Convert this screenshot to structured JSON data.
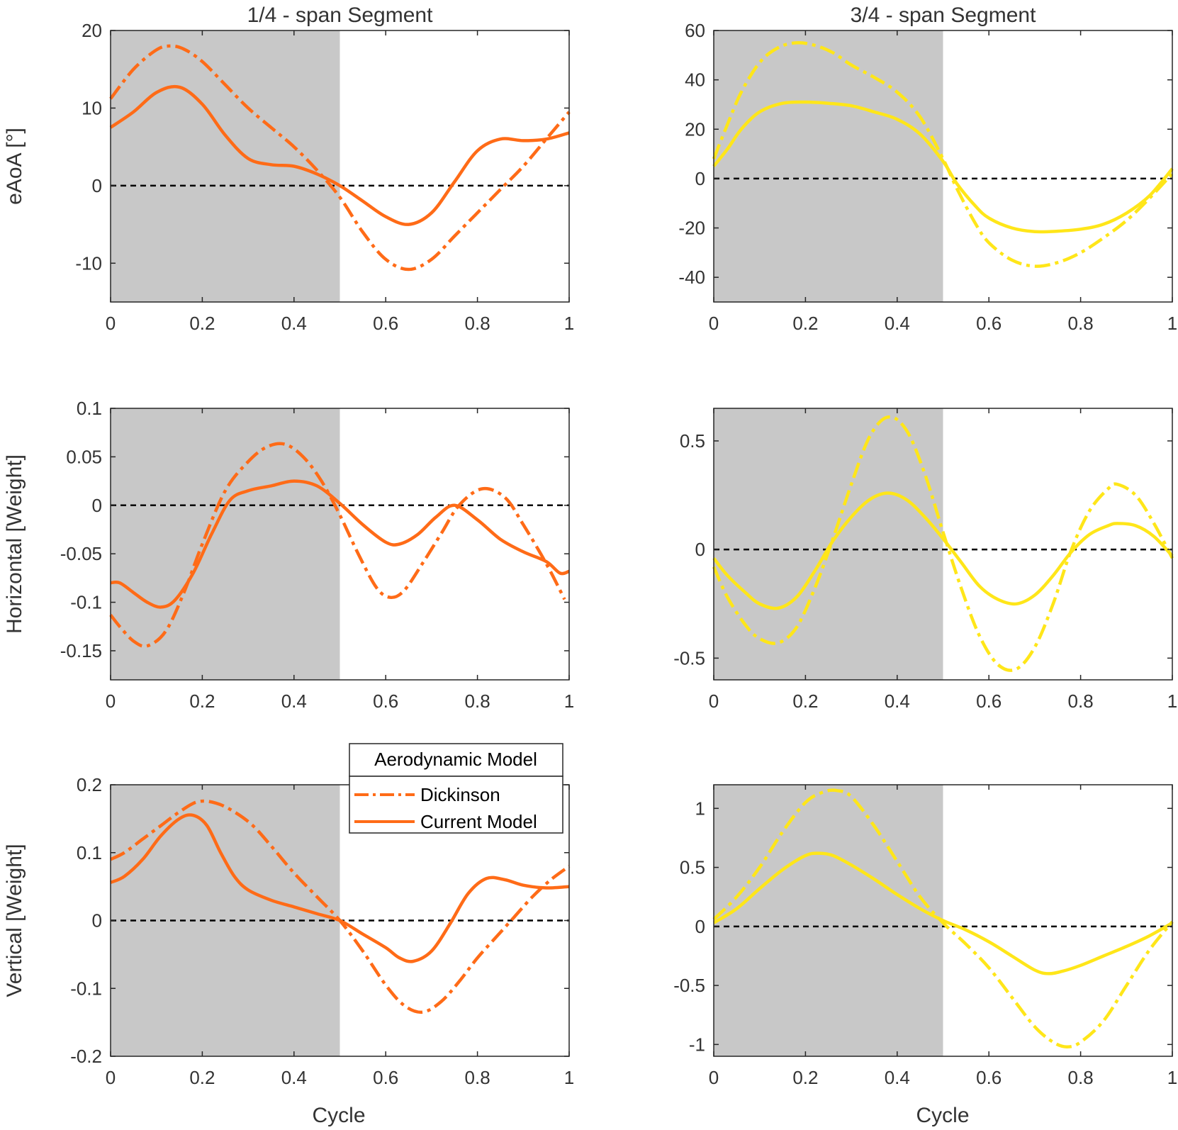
{
  "figure": {
    "x_label": "Cycle"
  },
  "chart_data": [
    {
      "type": "line",
      "panel": "r1c1",
      "title": "1/4 - span Segment",
      "xlabel": "",
      "ylabel": "eAoA [°]",
      "xlim": [
        0,
        1
      ],
      "ylim": [
        -15,
        20
      ],
      "xticks": [
        0,
        0.2,
        0.4,
        0.6,
        0.8,
        1
      ],
      "xtick_labels": [
        "0",
        "0.2",
        "0.4",
        "0.6",
        "0.8",
        "1"
      ],
      "yticks": [
        -10,
        0,
        10,
        20
      ],
      "ytick_labels": [
        "-10",
        "0",
        "10",
        "20"
      ],
      "shaded_region": [
        0,
        0.5
      ],
      "reference_line": 0,
      "color": "#FF6B17",
      "series": [
        {
          "name": "Dickinson",
          "style": "dashdot",
          "x": [
            0,
            0.05,
            0.1,
            0.13,
            0.16,
            0.2,
            0.25,
            0.3,
            0.35,
            0.4,
            0.45,
            0.5,
            0.55,
            0.6,
            0.65,
            0.7,
            0.75,
            0.8,
            0.85,
            0.9,
            0.95,
            1.0
          ],
          "values": [
            11.2,
            15.0,
            17.5,
            18.0,
            17.6,
            16.0,
            13.0,
            10.0,
            7.5,
            5.0,
            2.0,
            -1.5,
            -6.0,
            -9.5,
            -10.8,
            -9.5,
            -6.5,
            -3.5,
            -0.5,
            2.5,
            6.0,
            9.5
          ]
        },
        {
          "name": "Current Model",
          "style": "solid",
          "x": [
            0,
            0.05,
            0.1,
            0.15,
            0.2,
            0.25,
            0.3,
            0.35,
            0.4,
            0.45,
            0.5,
            0.55,
            0.6,
            0.65,
            0.7,
            0.75,
            0.8,
            0.85,
            0.9,
            0.95,
            1.0
          ],
          "values": [
            7.5,
            9.5,
            12.0,
            12.7,
            10.5,
            6.5,
            3.5,
            2.7,
            2.5,
            1.5,
            0.0,
            -2.0,
            -4.0,
            -5.0,
            -3.5,
            0.5,
            4.5,
            6.0,
            5.8,
            6.0,
            6.8
          ]
        }
      ]
    },
    {
      "type": "line",
      "panel": "r1c2",
      "title": "3/4 - span Segment",
      "xlabel": "",
      "ylabel": "",
      "xlim": [
        0,
        1
      ],
      "ylim": [
        -50,
        60
      ],
      "xticks": [
        0,
        0.2,
        0.4,
        0.6,
        0.8,
        1
      ],
      "xtick_labels": [
        "0",
        "0.2",
        "0.4",
        "0.6",
        "0.8",
        "1"
      ],
      "yticks": [
        -40,
        -20,
        0,
        20,
        40,
        60
      ],
      "ytick_labels": [
        "-40",
        "-20",
        "0",
        "20",
        "40",
        "60"
      ],
      "shaded_region": [
        0,
        0.5
      ],
      "reference_line": 0,
      "color": "#FFE619",
      "series": [
        {
          "name": "Dickinson",
          "style": "dashdot",
          "x": [
            0,
            0.03,
            0.06,
            0.1,
            0.14,
            0.18,
            0.22,
            0.26,
            0.3,
            0.35,
            0.4,
            0.45,
            0.5,
            0.53,
            0.57,
            0.6,
            0.65,
            0.7,
            0.75,
            0.8,
            0.85,
            0.9,
            0.95,
            1.0
          ],
          "values": [
            8,
            22,
            35,
            47,
            53,
            55,
            54,
            51,
            46,
            41,
            35,
            25,
            8,
            -4,
            -18,
            -26,
            -33,
            -35.5,
            -34,
            -30,
            -24,
            -17,
            -8,
            2
          ]
        },
        {
          "name": "Current Model",
          "style": "solid",
          "x": [
            0,
            0.03,
            0.06,
            0.1,
            0.15,
            0.2,
            0.25,
            0.3,
            0.35,
            0.4,
            0.45,
            0.5,
            0.53,
            0.57,
            0.6,
            0.65,
            0.7,
            0.75,
            0.8,
            0.85,
            0.9,
            0.95,
            1.0
          ],
          "values": [
            5,
            12,
            20,
            27,
            30.5,
            31,
            30.5,
            29.5,
            27,
            24,
            18,
            7,
            -2,
            -11,
            -16,
            -20,
            -21.5,
            -21.3,
            -20.5,
            -18.5,
            -14,
            -7,
            4
          ]
        }
      ]
    },
    {
      "type": "line",
      "panel": "r2c1",
      "title": "",
      "xlabel": "",
      "ylabel": "Horizontal [Weight]",
      "xlim": [
        0,
        1
      ],
      "ylim": [
        -0.18,
        0.1
      ],
      "xticks": [
        0,
        0.2,
        0.4,
        0.6,
        0.8,
        1
      ],
      "xtick_labels": [
        "0",
        "0.2",
        "0.4",
        "0.6",
        "0.8",
        "1"
      ],
      "yticks": [
        -0.15,
        -0.1,
        -0.05,
        0,
        0.05,
        0.1
      ],
      "ytick_labels": [
        "-0.15",
        "-0.1",
        "-0.05",
        "0",
        "0.05",
        "0.1"
      ],
      "shaded_region": [
        0,
        0.5
      ],
      "reference_line": 0,
      "color": "#FF6B17",
      "series": [
        {
          "name": "Dickinson",
          "style": "dashdot",
          "x": [
            0,
            0.02,
            0.05,
            0.08,
            0.12,
            0.16,
            0.2,
            0.25,
            0.3,
            0.34,
            0.38,
            0.42,
            0.46,
            0.5,
            0.54,
            0.58,
            0.61,
            0.64,
            0.68,
            0.72,
            0.76,
            0.81,
            0.86,
            0.9,
            0.95,
            0.99
          ],
          "values": [
            -0.113,
            -0.125,
            -0.14,
            -0.145,
            -0.13,
            -0.09,
            -0.04,
            0.015,
            0.045,
            0.06,
            0.063,
            0.05,
            0.025,
            -0.01,
            -0.05,
            -0.085,
            -0.095,
            -0.088,
            -0.06,
            -0.03,
            0.0,
            0.017,
            0.008,
            -0.02,
            -0.06,
            -0.097
          ]
        },
        {
          "name": "Current Model",
          "style": "solid",
          "x": [
            0,
            0.02,
            0.05,
            0.08,
            0.11,
            0.14,
            0.18,
            0.22,
            0.26,
            0.3,
            0.35,
            0.4,
            0.45,
            0.5,
            0.55,
            0.6,
            0.63,
            0.67,
            0.71,
            0.75,
            0.8,
            0.85,
            0.9,
            0.95,
            0.98,
            1.0
          ],
          "values": [
            -0.08,
            -0.08,
            -0.09,
            -0.1,
            -0.105,
            -0.098,
            -0.07,
            -0.03,
            0.005,
            0.015,
            0.02,
            0.025,
            0.02,
            0.002,
            -0.02,
            -0.038,
            -0.04,
            -0.03,
            -0.012,
            0.0,
            -0.015,
            -0.035,
            -0.048,
            -0.058,
            -0.07,
            -0.068
          ]
        }
      ]
    },
    {
      "type": "line",
      "panel": "r2c2",
      "title": "",
      "xlabel": "",
      "ylabel": "",
      "xlim": [
        0,
        1
      ],
      "ylim": [
        -0.6,
        0.65
      ],
      "xticks": [
        0,
        0.2,
        0.4,
        0.6,
        0.8,
        1
      ],
      "xtick_labels": [
        "0",
        "0.2",
        "0.4",
        "0.6",
        "0.8",
        "1"
      ],
      "yticks": [
        -0.5,
        0,
        0.5
      ],
      "ytick_labels": [
        "-0.5",
        "0",
        "0.5"
      ],
      "shaded_region": [
        0,
        0.5
      ],
      "reference_line": 0,
      "color": "#FFE619",
      "series": [
        {
          "name": "Dickinson",
          "style": "dashdot",
          "x": [
            0,
            0.03,
            0.07,
            0.1,
            0.14,
            0.18,
            0.22,
            0.26,
            0.3,
            0.34,
            0.38,
            0.42,
            0.46,
            0.5,
            0.54,
            0.58,
            0.62,
            0.66,
            0.7,
            0.74,
            0.78,
            0.82,
            0.86,
            0.88,
            0.92,
            0.96,
            1.0
          ],
          "values": [
            -0.08,
            -0.22,
            -0.35,
            -0.41,
            -0.43,
            -0.36,
            -0.18,
            0.05,
            0.3,
            0.52,
            0.61,
            0.55,
            0.35,
            0.08,
            -0.18,
            -0.4,
            -0.53,
            -0.55,
            -0.45,
            -0.25,
            0.0,
            0.18,
            0.28,
            0.3,
            0.25,
            0.12,
            -0.04
          ]
        },
        {
          "name": "Current Model",
          "style": "solid",
          "x": [
            0,
            0.03,
            0.07,
            0.1,
            0.14,
            0.18,
            0.22,
            0.26,
            0.3,
            0.34,
            0.38,
            0.42,
            0.46,
            0.5,
            0.54,
            0.58,
            0.62,
            0.66,
            0.7,
            0.74,
            0.78,
            0.82,
            0.86,
            0.88,
            0.92,
            0.96,
            1.0
          ],
          "values": [
            -0.04,
            -0.12,
            -0.2,
            -0.25,
            -0.27,
            -0.22,
            -0.1,
            0.04,
            0.15,
            0.23,
            0.26,
            0.23,
            0.15,
            0.05,
            -0.06,
            -0.17,
            -0.23,
            -0.25,
            -0.21,
            -0.12,
            -0.01,
            0.07,
            0.11,
            0.12,
            0.11,
            0.06,
            -0.03
          ]
        }
      ]
    },
    {
      "type": "line",
      "panel": "r3c1",
      "title": "",
      "xlabel": "Cycle",
      "ylabel": "Vertical [Weight]",
      "xlim": [
        0,
        1
      ],
      "ylim": [
        -0.2,
        0.2
      ],
      "xticks": [
        0,
        0.2,
        0.4,
        0.6,
        0.8,
        1
      ],
      "xtick_labels": [
        "0",
        "0.2",
        "0.4",
        "0.6",
        "0.8",
        "1"
      ],
      "yticks": [
        -0.2,
        -0.1,
        0,
        0.1,
        0.2
      ],
      "ytick_labels": [
        "-0.2",
        "-0.1",
        "0",
        "0.1",
        "0.2"
      ],
      "shaded_region": [
        0,
        0.5
      ],
      "reference_line": 0,
      "color": "#FF6B17",
      "legend": {
        "title": "Aerodynamic Model",
        "position": "top-right",
        "entries": [
          "Dickinson",
          "Current Model"
        ]
      },
      "series": [
        {
          "name": "Dickinson",
          "style": "dashdot",
          "x": [
            0,
            0.03,
            0.07,
            0.11,
            0.15,
            0.19,
            0.23,
            0.27,
            0.31,
            0.35,
            0.4,
            0.45,
            0.5,
            0.55,
            0.6,
            0.64,
            0.68,
            0.72,
            0.76,
            0.8,
            0.84,
            0.88,
            0.92,
            0.96,
            1.0
          ],
          "values": [
            0.09,
            0.1,
            0.12,
            0.14,
            0.16,
            0.175,
            0.173,
            0.16,
            0.14,
            0.11,
            0.07,
            0.035,
            0.0,
            -0.045,
            -0.095,
            -0.125,
            -0.135,
            -0.12,
            -0.09,
            -0.055,
            -0.025,
            0.005,
            0.035,
            0.06,
            0.08
          ]
        },
        {
          "name": "Current Model",
          "style": "solid",
          "x": [
            0,
            0.03,
            0.07,
            0.11,
            0.15,
            0.18,
            0.21,
            0.24,
            0.27,
            0.3,
            0.35,
            0.4,
            0.45,
            0.5,
            0.55,
            0.6,
            0.63,
            0.66,
            0.7,
            0.74,
            0.78,
            0.82,
            0.86,
            0.9,
            0.95,
            1.0
          ],
          "values": [
            0.056,
            0.065,
            0.09,
            0.125,
            0.15,
            0.155,
            0.14,
            0.1,
            0.065,
            0.045,
            0.03,
            0.02,
            0.01,
            0.0,
            -0.02,
            -0.04,
            -0.055,
            -0.06,
            -0.045,
            -0.005,
            0.04,
            0.062,
            0.06,
            0.052,
            0.048,
            0.05
          ]
        }
      ]
    },
    {
      "type": "line",
      "panel": "r3c2",
      "title": "",
      "xlabel": "Cycle",
      "ylabel": "",
      "xlim": [
        0,
        1
      ],
      "ylim": [
        -1.1,
        1.2
      ],
      "xticks": [
        0,
        0.2,
        0.4,
        0.6,
        0.8,
        1
      ],
      "xtick_labels": [
        "0",
        "0.2",
        "0.4",
        "0.6",
        "0.8",
        "1"
      ],
      "yticks": [
        -1,
        -0.5,
        0,
        0.5,
        1
      ],
      "ytick_labels": [
        "-1",
        "-0.5",
        "0",
        "0.5",
        "1"
      ],
      "shaded_region": [
        0,
        0.5
      ],
      "reference_line": 0,
      "color": "#FFE619",
      "series": [
        {
          "name": "Dickinson",
          "style": "dashdot",
          "x": [
            0,
            0.05,
            0.1,
            0.15,
            0.2,
            0.24,
            0.27,
            0.3,
            0.35,
            0.4,
            0.45,
            0.5,
            0.55,
            0.6,
            0.65,
            0.7,
            0.74,
            0.77,
            0.8,
            0.85,
            0.9,
            0.95,
            1.0
          ],
          "values": [
            0.06,
            0.25,
            0.5,
            0.8,
            1.05,
            1.14,
            1.15,
            1.1,
            0.85,
            0.55,
            0.25,
            0.03,
            -0.15,
            -0.35,
            -0.6,
            -0.85,
            -0.98,
            -1.02,
            -0.98,
            -0.8,
            -0.5,
            -0.2,
            0.04
          ]
        },
        {
          "name": "Current Model",
          "style": "solid",
          "x": [
            0,
            0.05,
            0.1,
            0.15,
            0.2,
            0.23,
            0.26,
            0.3,
            0.35,
            0.4,
            0.45,
            0.5,
            0.55,
            0.6,
            0.65,
            0.7,
            0.73,
            0.76,
            0.8,
            0.85,
            0.9,
            0.95,
            1.0
          ],
          "values": [
            0.03,
            0.15,
            0.32,
            0.48,
            0.6,
            0.62,
            0.6,
            0.52,
            0.4,
            0.27,
            0.15,
            0.05,
            -0.03,
            -0.13,
            -0.25,
            -0.37,
            -0.4,
            -0.38,
            -0.33,
            -0.25,
            -0.17,
            -0.08,
            0.03
          ]
        }
      ]
    }
  ]
}
